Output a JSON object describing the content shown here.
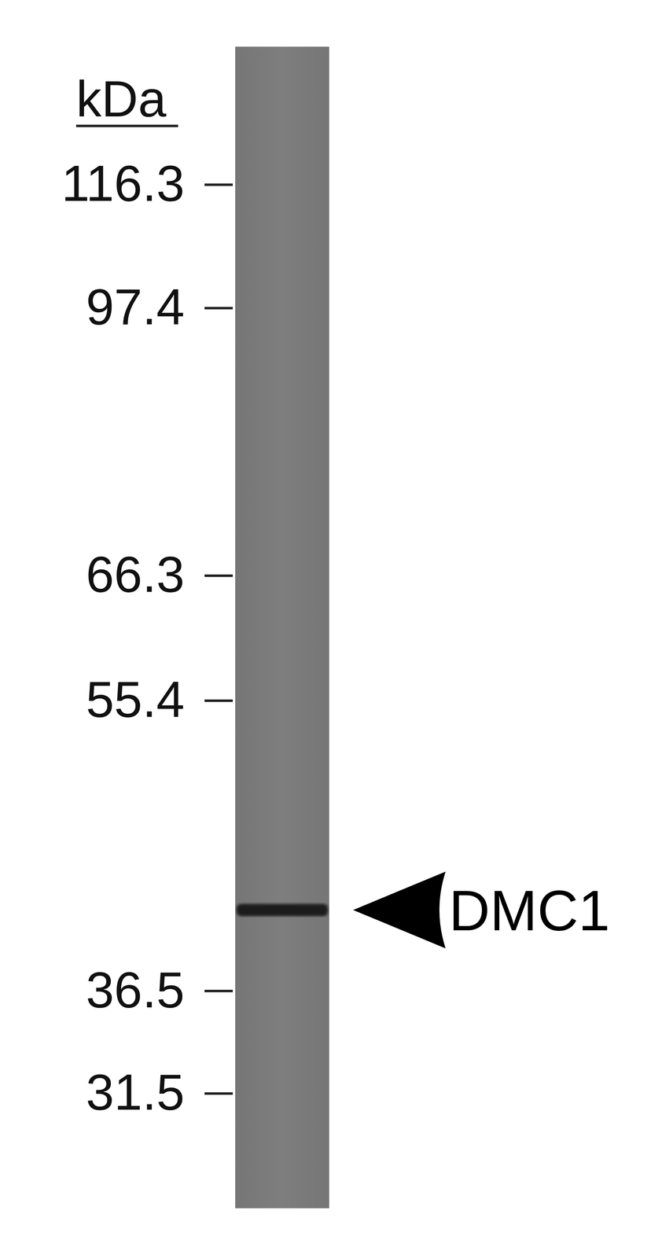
{
  "chart_data": {
    "type": "blot",
    "y_label": "kDa",
    "log": "y",
    "ylim": [
      31.5,
      116.3
    ],
    "yticks": [
      116.3,
      97.4,
      66.3,
      55.4,
      36.5,
      31.5
    ],
    "bands": [
      {
        "label": "DMC1",
        "value": 41
      }
    ]
  }
}
